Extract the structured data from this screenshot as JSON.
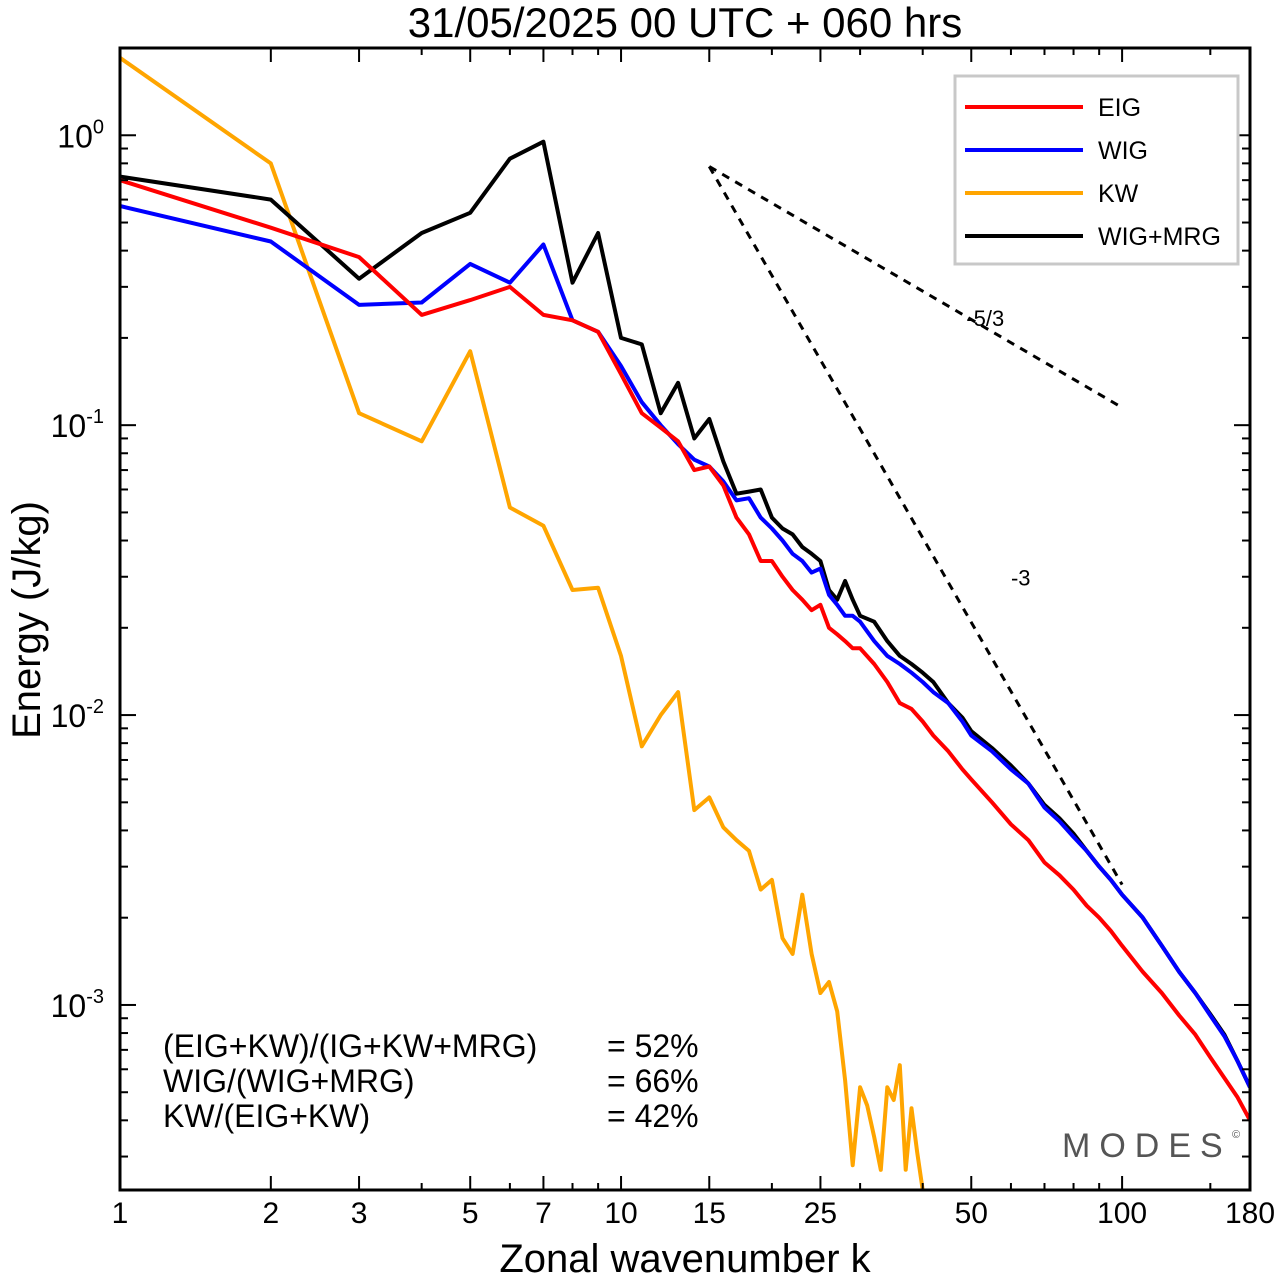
{
  "chart_data": {
    "type": "line",
    "title": "31/05/2025  00 UTC  + 060 hrs",
    "xlabel": "Zonal wavenumber k",
    "ylabel": "Energy (J/kg)",
    "xscale": "log",
    "yscale": "log",
    "xlim": [
      1,
      180
    ],
    "ylim": [
      0.00023,
      2.0
    ],
    "x_ticks": [
      1,
      2,
      3,
      5,
      7,
      10,
      15,
      25,
      50,
      100,
      180
    ],
    "x_tick_labels": [
      "1",
      "2",
      "3",
      "5",
      "7",
      "10",
      "15",
      "25",
      "50",
      "100",
      "180"
    ],
    "y_ticks": [
      {
        "value": 1,
        "base": "10",
        "exp": "0"
      },
      {
        "value": 0.1,
        "base": "10",
        "exp": "-1"
      },
      {
        "value": 0.01,
        "base": "10",
        "exp": "-2"
      },
      {
        "value": 0.001,
        "base": "10",
        "exp": "-3"
      }
    ],
    "legend_position": "top-right",
    "series": [
      {
        "name": "EIG",
        "color": "#ff0000",
        "points": [
          [
            1,
            0.7
          ],
          [
            2,
            0.48
          ],
          [
            3,
            0.38
          ],
          [
            4,
            0.24
          ],
          [
            5,
            0.27
          ],
          [
            6,
            0.3
          ],
          [
            7,
            0.24
          ],
          [
            8,
            0.23
          ],
          [
            9,
            0.21
          ],
          [
            10,
            0.15
          ],
          [
            11,
            0.11
          ],
          [
            12,
            0.098
          ],
          [
            13,
            0.088
          ],
          [
            14,
            0.07
          ],
          [
            15,
            0.072
          ],
          [
            16,
            0.062
          ],
          [
            17,
            0.048
          ],
          [
            18,
            0.042
          ],
          [
            19,
            0.034
          ],
          [
            20,
            0.034
          ],
          [
            21,
            0.03
          ],
          [
            22,
            0.027
          ],
          [
            23,
            0.025
          ],
          [
            24,
            0.023
          ],
          [
            25,
            0.024
          ],
          [
            26,
            0.02
          ],
          [
            27,
            0.019
          ],
          [
            28,
            0.018
          ],
          [
            29,
            0.017
          ],
          [
            30,
            0.017
          ],
          [
            32,
            0.015
          ],
          [
            34,
            0.013
          ],
          [
            36,
            0.011
          ],
          [
            38,
            0.0105
          ],
          [
            40,
            0.0095
          ],
          [
            42,
            0.0085
          ],
          [
            45,
            0.0075
          ],
          [
            48,
            0.0065
          ],
          [
            50,
            0.006
          ],
          [
            55,
            0.005
          ],
          [
            60,
            0.0042
          ],
          [
            65,
            0.0037
          ],
          [
            70,
            0.0031
          ],
          [
            75,
            0.0028
          ],
          [
            80,
            0.0025
          ],
          [
            85,
            0.0022
          ],
          [
            90,
            0.002
          ],
          [
            95,
            0.0018
          ],
          [
            100,
            0.0016
          ],
          [
            110,
            0.0013
          ],
          [
            120,
            0.0011
          ],
          [
            130,
            0.00092
          ],
          [
            140,
            0.00079
          ],
          [
            150,
            0.00066
          ],
          [
            160,
            0.00056
          ],
          [
            170,
            0.00048
          ],
          [
            180,
            0.0004
          ]
        ]
      },
      {
        "name": "WIG",
        "color": "#0000ff",
        "points": [
          [
            1,
            0.57
          ],
          [
            2,
            0.43
          ],
          [
            3,
            0.26
          ],
          [
            4,
            0.265
          ],
          [
            5,
            0.36
          ],
          [
            6,
            0.31
          ],
          [
            7,
            0.42
          ],
          [
            8,
            0.23
          ],
          [
            9,
            0.21
          ],
          [
            10,
            0.16
          ],
          [
            11,
            0.12
          ],
          [
            12,
            0.1
          ],
          [
            13,
            0.086
          ],
          [
            14,
            0.076
          ],
          [
            15,
            0.072
          ],
          [
            16,
            0.064
          ],
          [
            17,
            0.055
          ],
          [
            18,
            0.056
          ],
          [
            19,
            0.048
          ],
          [
            20,
            0.044
          ],
          [
            21,
            0.04
          ],
          [
            22,
            0.036
          ],
          [
            23,
            0.034
          ],
          [
            24,
            0.031
          ],
          [
            25,
            0.032
          ],
          [
            26,
            0.026
          ],
          [
            27,
            0.024
          ],
          [
            28,
            0.022
          ],
          [
            29,
            0.022
          ],
          [
            30,
            0.021
          ],
          [
            32,
            0.018
          ],
          [
            34,
            0.016
          ],
          [
            36,
            0.015
          ],
          [
            38,
            0.014
          ],
          [
            40,
            0.013
          ],
          [
            42,
            0.012
          ],
          [
            45,
            0.011
          ],
          [
            48,
            0.0095
          ],
          [
            50,
            0.0085
          ],
          [
            55,
            0.0075
          ],
          [
            60,
            0.0065
          ],
          [
            65,
            0.0058
          ],
          [
            70,
            0.0048
          ],
          [
            75,
            0.0043
          ],
          [
            80,
            0.0038
          ],
          [
            85,
            0.0034
          ],
          [
            90,
            0.003
          ],
          [
            95,
            0.0027
          ],
          [
            100,
            0.0024
          ],
          [
            110,
            0.002
          ],
          [
            120,
            0.0016
          ],
          [
            130,
            0.0013
          ],
          [
            140,
            0.0011
          ],
          [
            150,
            0.00092
          ],
          [
            160,
            0.00078
          ],
          [
            170,
            0.00064
          ],
          [
            180,
            0.00052
          ]
        ]
      },
      {
        "name": "KW",
        "color": "#ffa500",
        "points": [
          [
            1,
            1.85
          ],
          [
            2,
            0.8
          ],
          [
            3,
            0.11
          ],
          [
            4,
            0.088
          ],
          [
            5,
            0.18
          ],
          [
            6,
            0.052
          ],
          [
            7,
            0.045
          ],
          [
            8,
            0.027
          ],
          [
            9,
            0.0275
          ],
          [
            10,
            0.016
          ],
          [
            11,
            0.0078
          ],
          [
            12,
            0.01
          ],
          [
            13,
            0.012
          ],
          [
            14,
            0.0047
          ],
          [
            15,
            0.0052
          ],
          [
            16,
            0.0041
          ],
          [
            17,
            0.0037
          ],
          [
            18,
            0.0034
          ],
          [
            19,
            0.0025
          ],
          [
            20,
            0.0027
          ],
          [
            21,
            0.0017
          ],
          [
            22,
            0.0015
          ],
          [
            23,
            0.0024
          ],
          [
            24,
            0.0015
          ],
          [
            25,
            0.0011
          ],
          [
            26,
            0.0012
          ],
          [
            27,
            0.00095
          ],
          [
            28,
            0.00055
          ],
          [
            29,
            0.00028
          ],
          [
            30,
            0.00052
          ],
          [
            31,
            0.00045
          ],
          [
            32,
            0.00035
          ],
          [
            33,
            0.00027
          ],
          [
            34,
            0.00052
          ],
          [
            35,
            0.00047
          ],
          [
            36,
            0.00062
          ],
          [
            37,
            0.00027
          ],
          [
            38,
            0.00044
          ],
          [
            39,
            0.00031
          ],
          [
            40,
            0.00023
          ]
        ]
      },
      {
        "name": "WIG+MRG",
        "color": "#000000",
        "points": [
          [
            1,
            0.72
          ],
          [
            2,
            0.6
          ],
          [
            3,
            0.32
          ],
          [
            4,
            0.46
          ],
          [
            5,
            0.54
          ],
          [
            6,
            0.83
          ],
          [
            7,
            0.95
          ],
          [
            8,
            0.31
          ],
          [
            9,
            0.46
          ],
          [
            10,
            0.2
          ],
          [
            11,
            0.19
          ],
          [
            12,
            0.11
          ],
          [
            13,
            0.14
          ],
          [
            14,
            0.09
          ],
          [
            15,
            0.105
          ],
          [
            16,
            0.075
          ],
          [
            17,
            0.058
          ],
          [
            18,
            0.059
          ],
          [
            19,
            0.06
          ],
          [
            20,
            0.048
          ],
          [
            21,
            0.044
          ],
          [
            22,
            0.042
          ],
          [
            23,
            0.038
          ],
          [
            24,
            0.036
          ],
          [
            25,
            0.034
          ],
          [
            26,
            0.027
          ],
          [
            27,
            0.025
          ],
          [
            28,
            0.029
          ],
          [
            29,
            0.025
          ],
          [
            30,
            0.022
          ],
          [
            32,
            0.021
          ],
          [
            34,
            0.018
          ],
          [
            36,
            0.016
          ],
          [
            38,
            0.015
          ],
          [
            40,
            0.014
          ],
          [
            42,
            0.013
          ],
          [
            45,
            0.011
          ],
          [
            48,
            0.0098
          ],
          [
            50,
            0.0088
          ],
          [
            55,
            0.0077
          ],
          [
            60,
            0.0067
          ],
          [
            65,
            0.0058
          ],
          [
            70,
            0.0049
          ],
          [
            75,
            0.0044
          ],
          [
            80,
            0.0039
          ],
          [
            85,
            0.0034
          ],
          [
            90,
            0.003
          ],
          [
            95,
            0.0027
          ],
          [
            100,
            0.0024
          ],
          [
            110,
            0.002
          ],
          [
            120,
            0.0016
          ],
          [
            130,
            0.0013
          ],
          [
            140,
            0.0011
          ],
          [
            150,
            0.00093
          ],
          [
            160,
            0.00079
          ],
          [
            170,
            0.00064
          ],
          [
            180,
            0.00052
          ]
        ]
      }
    ],
    "reference_slopes": [
      {
        "label": "-5/3",
        "from": [
          15,
          0.78
        ],
        "to": [
          100,
          0.115
        ]
      },
      {
        "label": "-3",
        "from": [
          15,
          0.78
        ],
        "to": [
          100,
          0.0026
        ]
      }
    ],
    "annotations": [
      {
        "label": "(EIG+KW)/(IG+KW+MRG)",
        "value": "= 52%"
      },
      {
        "label": "WIG/(WIG+MRG)",
        "value": "= 66%"
      },
      {
        "label": "KW/(EIG+KW)",
        "value": "= 42%"
      }
    ],
    "watermark": "MODES",
    "watermark_mark": "©"
  }
}
